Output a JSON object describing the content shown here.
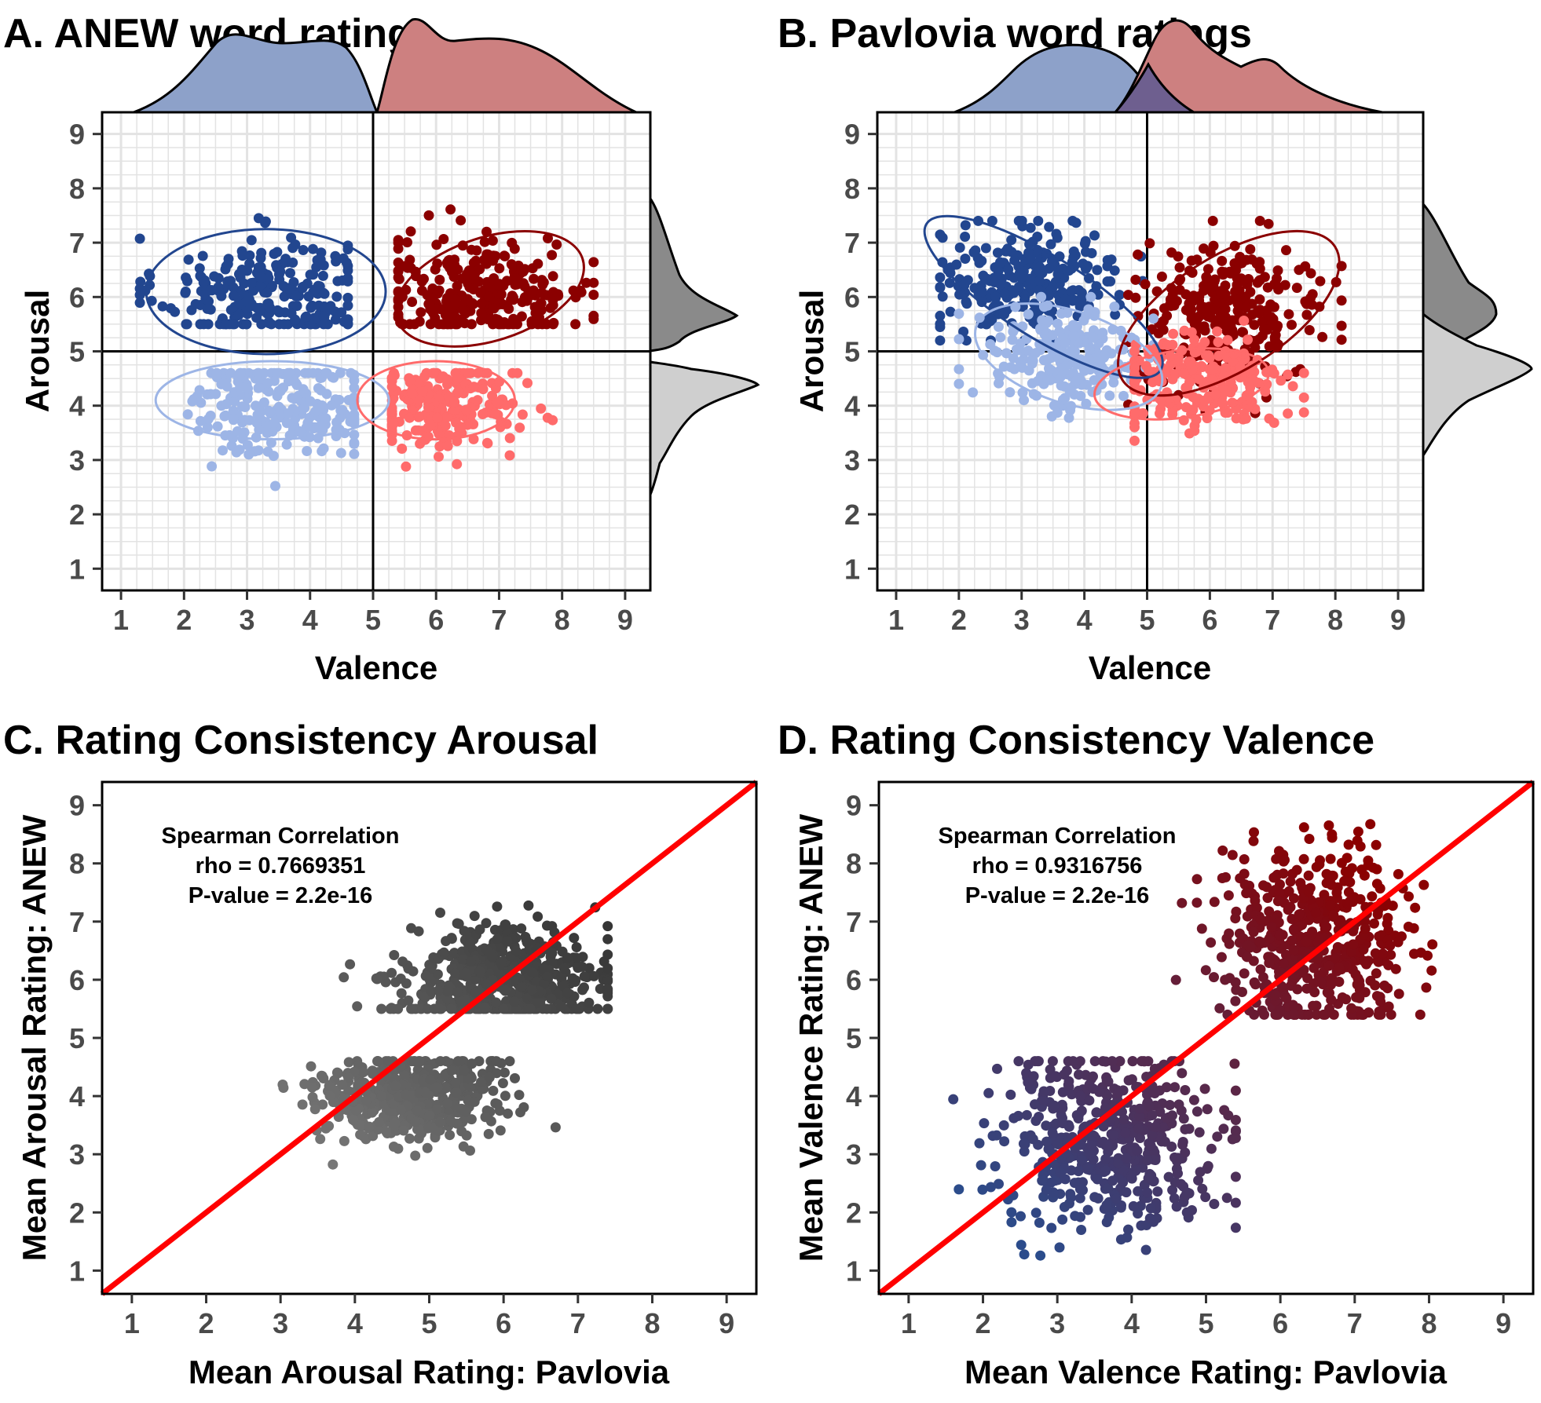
{
  "chart_data": [
    {
      "id": "A",
      "type": "scatter",
      "title": "A. ANEW word ratings",
      "xlabel": "Valence",
      "ylabel": "Arousal",
      "xlim": [
        0.7,
        9.4
      ],
      "ylim": [
        0.6,
        9.4
      ],
      "xticks": [
        "1",
        "2",
        "3",
        "4",
        "5",
        "6",
        "7",
        "8",
        "9"
      ],
      "yticks": [
        "1",
        "2",
        "3",
        "4",
        "5",
        "6",
        "7",
        "8",
        "9"
      ],
      "grid": true,
      "reference_lines": {
        "x": 5,
        "y": 5
      },
      "marginal_densities": {
        "top": "valence by sign",
        "right": "arousal by level"
      },
      "series": [
        {
          "color": "#22468f",
          "n": 260,
          "cx": 3.3,
          "cy": 6.1,
          "sx": 0.85,
          "sy": 0.5,
          "xr": [
            1.3,
            4.6
          ],
          "yr": [
            5.5,
            8.2
          ],
          "ellipse": {
            "cx": 3.3,
            "cy": 6.1,
            "rx": 1.9,
            "ry": 1.15,
            "angle": 0
          }
        },
        {
          "color": "#8b0000",
          "n": 280,
          "cx": 6.8,
          "cy": 6.1,
          "sx": 0.85,
          "sy": 0.5,
          "xr": [
            5.4,
            8.5
          ],
          "yr": [
            5.5,
            7.7
          ],
          "ellipse": {
            "cx": 6.85,
            "cy": 6.15,
            "rx": 1.55,
            "ry": 0.95,
            "angle": 18
          }
        },
        {
          "color": "#9db5e6",
          "n": 240,
          "cx": 3.6,
          "cy": 4.0,
          "sx": 0.75,
          "sy": 0.45,
          "xr": [
            1.5,
            4.7
          ],
          "yr": [
            2.3,
            4.6
          ],
          "ellipse": {
            "cx": 3.4,
            "cy": 4.1,
            "rx": 1.85,
            "ry": 0.72,
            "angle": 0
          }
        },
        {
          "color": "#ff6b6b",
          "n": 240,
          "cx": 6.1,
          "cy": 4.0,
          "sx": 0.6,
          "sy": 0.4,
          "xr": [
            5.3,
            7.9
          ],
          "yr": [
            2.4,
            4.6
          ],
          "ellipse": {
            "cx": 6.0,
            "cy": 4.1,
            "rx": 1.25,
            "ry": 0.72,
            "angle": 0
          }
        }
      ]
    },
    {
      "id": "B",
      "type": "scatter",
      "title": "B. Pavlovia word ratings",
      "xlabel": "Valence",
      "ylabel": "Arousal",
      "xlim": [
        0.7,
        9.4
      ],
      "ylim": [
        0.6,
        9.4
      ],
      "xticks": [
        "1",
        "2",
        "3",
        "4",
        "5",
        "6",
        "7",
        "8",
        "9"
      ],
      "yticks": [
        "1",
        "2",
        "3",
        "4",
        "5",
        "6",
        "7",
        "8",
        "9"
      ],
      "grid": true,
      "reference_lines": {
        "x": 5,
        "y": 5
      },
      "marginal_densities": {
        "top": "valence by sign",
        "right": "arousal by level"
      },
      "series": [
        {
          "color": "#22468f",
          "n": 260,
          "cx": 3.1,
          "cy": 6.3,
          "sx": 0.7,
          "sy": 0.5,
          "xr": [
            1.7,
            5.5
          ],
          "yr": [
            5.2,
            7.4
          ],
          "ellipse": {
            "cx": 3.35,
            "cy": 6.0,
            "rx": 2.2,
            "ry": 0.75,
            "angle": -32
          }
        },
        {
          "color": "#8b0000",
          "n": 280,
          "cx": 6.3,
          "cy": 5.7,
          "sx": 0.75,
          "sy": 0.6,
          "xr": [
            4.7,
            8.1
          ],
          "yr": [
            3.8,
            7.4
          ],
          "ellipse": {
            "cx": 6.3,
            "cy": 5.7,
            "rx": 2.0,
            "ry": 1.05,
            "angle": 32
          }
        },
        {
          "color": "#9db5e6",
          "n": 240,
          "cx": 3.7,
          "cy": 4.9,
          "sx": 0.65,
          "sy": 0.5,
          "xr": [
            2.0,
            5.1
          ],
          "yr": [
            3.2,
            6.0
          ],
          "ellipse": {
            "cx": 3.75,
            "cy": 4.9,
            "rx": 1.55,
            "ry": 0.85,
            "angle": -18
          }
        },
        {
          "color": "#ff6b6b",
          "n": 240,
          "cx": 5.8,
          "cy": 4.4,
          "sx": 0.75,
          "sy": 0.45,
          "xr": [
            4.8,
            7.5
          ],
          "yr": [
            2.4,
            5.6
          ],
          "ellipse": {
            "cx": 5.55,
            "cy": 4.4,
            "rx": 1.4,
            "ry": 0.62,
            "angle": 8
          }
        }
      ]
    },
    {
      "id": "C",
      "type": "scatter",
      "title": "C. Rating Consistency Arousal",
      "xlabel": "Mean Arousal Rating: Pavlovia",
      "ylabel": "Mean Arousal Rating: ANEW",
      "xlim": [
        0.6,
        9.4
      ],
      "ylim": [
        0.6,
        9.4
      ],
      "xticks": [
        "1",
        "2",
        "3",
        "4",
        "5",
        "6",
        "7",
        "8",
        "9"
      ],
      "yticks": [
        "1",
        "2",
        "3",
        "4",
        "5",
        "6",
        "7",
        "8",
        "9"
      ],
      "grid": false,
      "identity_line": {
        "color": "#ff0000"
      },
      "annotation": [
        "Spearman Correlation",
        "rho = 0.7669351",
        "P-value = 2.2e-16"
      ],
      "color_gradient": [
        "#8c8c8c",
        "#2f2f2f"
      ],
      "clusters": [
        {
          "n": 560,
          "cx": 6.0,
          "cy": 6.0,
          "sx": 0.65,
          "sy": 0.45,
          "xr": [
            3.7,
            7.4
          ],
          "yr": [
            5.5,
            8.2
          ]
        },
        {
          "n": 480,
          "cx": 4.7,
          "cy": 4.0,
          "sx": 0.6,
          "sy": 0.4,
          "xr": [
            2.4,
            6.7
          ],
          "yr": [
            2.3,
            4.6
          ]
        }
      ]
    },
    {
      "id": "D",
      "type": "scatter",
      "title": "D. Rating Consistency Valence",
      "xlabel": "Mean Valence Rating: Pavlovia",
      "ylabel": "Mean Valence Rating: ANEW",
      "xlim": [
        0.6,
        9.4
      ],
      "ylim": [
        0.6,
        9.4
      ],
      "xticks": [
        "1",
        "2",
        "3",
        "4",
        "5",
        "6",
        "7",
        "8",
        "9"
      ],
      "yticks": [
        "1",
        "2",
        "3",
        "4",
        "5",
        "6",
        "7",
        "8",
        "9"
      ],
      "grid": false,
      "identity_line": {
        "color": "#ff0000"
      },
      "annotation": [
        "Spearman Correlation",
        "rho = 0.9316756",
        "P-value = 2.2e-16"
      ],
      "color_gradient": [
        "#2b4c8c",
        "#8b0000"
      ],
      "clusters": [
        {
          "n": 520,
          "cx": 6.5,
          "cy": 6.7,
          "sx": 0.65,
          "sy": 0.75,
          "xr": [
            4.3,
            8.2
          ],
          "yr": [
            5.4,
            8.7
          ]
        },
        {
          "n": 520,
          "cx": 3.7,
          "cy": 3.3,
          "sx": 0.75,
          "sy": 0.75,
          "xr": [
            1.6,
            5.4
          ],
          "yr": [
            1.2,
            4.6
          ]
        }
      ]
    }
  ]
}
